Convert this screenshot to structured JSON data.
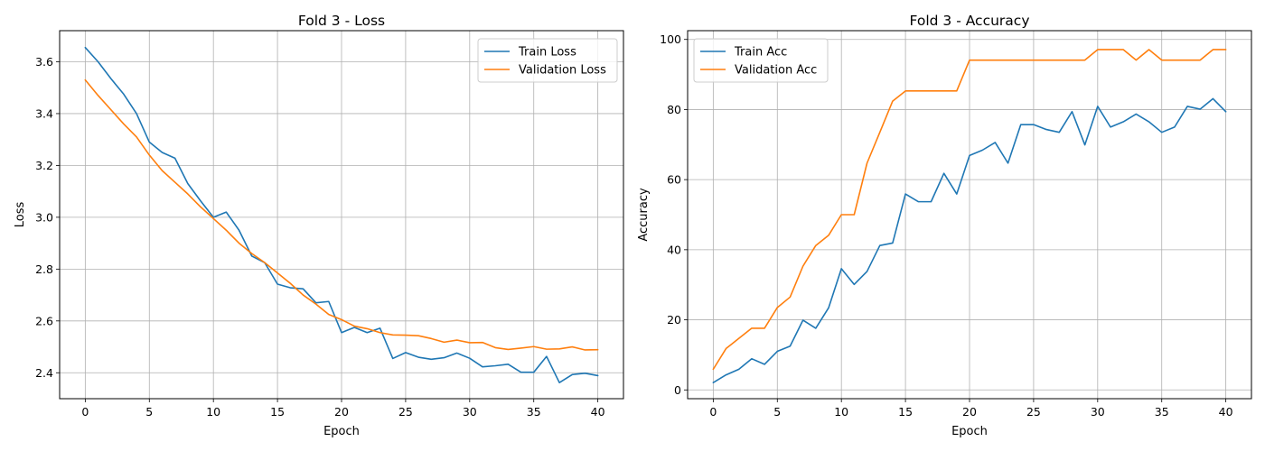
{
  "chart_data": [
    {
      "type": "line",
      "title": "Fold 3 - Loss",
      "xlabel": "Epoch",
      "ylabel": "Loss",
      "xlim": [
        -2,
        42
      ],
      "ylim": [
        2.3,
        3.72
      ],
      "xticks": [
        0,
        5,
        10,
        15,
        20,
        25,
        30,
        35,
        40
      ],
      "yticks": [
        2.4,
        2.6,
        2.8,
        3.0,
        3.2,
        3.4,
        3.6
      ],
      "ytick_labels": [
        "2.4",
        "2.6",
        "2.8",
        "3.0",
        "3.2",
        "3.4",
        "3.6"
      ],
      "grid": true,
      "legend_position": "top-right",
      "x": [
        0,
        1,
        2,
        3,
        4,
        5,
        6,
        7,
        8,
        9,
        10,
        11,
        12,
        13,
        14,
        15,
        16,
        17,
        18,
        19,
        20,
        21,
        22,
        23,
        24,
        25,
        26,
        27,
        28,
        29,
        30,
        31,
        32,
        33,
        34,
        35,
        36,
        37,
        38,
        39,
        40
      ],
      "series": [
        {
          "name": "Train Loss",
          "color": "#1f77b4",
          "values": [
            3.655,
            3.6,
            3.535,
            3.475,
            3.4,
            3.29,
            3.25,
            3.228,
            3.13,
            3.063,
            3.0,
            3.02,
            2.95,
            2.85,
            2.825,
            2.742,
            2.728,
            2.724,
            2.67,
            2.675,
            2.555,
            2.575,
            2.555,
            2.572,
            2.455,
            2.478,
            2.46,
            2.452,
            2.458,
            2.476,
            2.456,
            2.423,
            2.427,
            2.433,
            2.402,
            2.402,
            2.463,
            2.362,
            2.393,
            2.398,
            2.389
          ]
        },
        {
          "name": "Validation Loss",
          "color": "#ff7f0e",
          "values": [
            3.53,
            3.47,
            3.415,
            3.36,
            3.31,
            3.24,
            3.18,
            3.135,
            3.09,
            3.04,
            2.995,
            2.95,
            2.9,
            2.86,
            2.825,
            2.785,
            2.745,
            2.7,
            2.665,
            2.625,
            2.605,
            2.58,
            2.57,
            2.555,
            2.546,
            2.545,
            2.543,
            2.532,
            2.518,
            2.526,
            2.516,
            2.517,
            2.497,
            2.49,
            2.495,
            2.501,
            2.491,
            2.492,
            2.5,
            2.488,
            2.489
          ]
        }
      ]
    },
    {
      "type": "line",
      "title": "Fold 3 - Accuracy",
      "xlabel": "Epoch",
      "ylabel": "Accuracy",
      "xlim": [
        -2,
        42
      ],
      "ylim": [
        -2.5,
        102.5
      ],
      "xticks": [
        0,
        5,
        10,
        15,
        20,
        25,
        30,
        35,
        40
      ],
      "yticks": [
        0,
        20,
        40,
        60,
        80,
        100
      ],
      "ytick_labels": [
        "0",
        "20",
        "40",
        "60",
        "80",
        "100"
      ],
      "grid": true,
      "legend_position": "top-left",
      "x": [
        0,
        1,
        2,
        3,
        4,
        5,
        6,
        7,
        8,
        9,
        10,
        11,
        12,
        13,
        14,
        15,
        16,
        17,
        18,
        19,
        20,
        21,
        22,
        23,
        24,
        25,
        26,
        27,
        28,
        29,
        30,
        31,
        32,
        33,
        34,
        35,
        36,
        37,
        38,
        39,
        40
      ],
      "series": [
        {
          "name": "Train Acc",
          "color": "#1f77b4",
          "values": [
            2.1,
            4.3,
            5.9,
            8.9,
            7.3,
            11.0,
            12.5,
            19.9,
            17.6,
            23.4,
            34.6,
            30.1,
            33.8,
            41.2,
            41.9,
            55.9,
            53.7,
            53.7,
            61.8,
            55.9,
            66.9,
            68.4,
            70.6,
            64.7,
            75.7,
            75.7,
            74.3,
            73.5,
            79.4,
            69.9,
            80.9,
            75.0,
            76.5,
            78.7,
            76.5,
            73.5,
            75.0,
            80.9,
            80.1,
            83.1,
            79.4
          ]
        },
        {
          "name": "Validation Acc",
          "color": "#ff7f0e",
          "values": [
            5.9,
            11.8,
            14.7,
            17.6,
            17.6,
            23.5,
            26.5,
            35.3,
            41.2,
            44.1,
            50.0,
            50.0,
            64.7,
            73.5,
            82.4,
            85.3,
            85.3,
            85.3,
            85.3,
            85.3,
            94.1,
            94.1,
            94.1,
            94.1,
            94.1,
            94.1,
            94.1,
            94.1,
            94.1,
            94.1,
            97.1,
            97.1,
            97.1,
            94.1,
            97.1,
            94.1,
            94.1,
            94.1,
            94.1,
            97.1,
            97.1
          ]
        }
      ]
    }
  ]
}
